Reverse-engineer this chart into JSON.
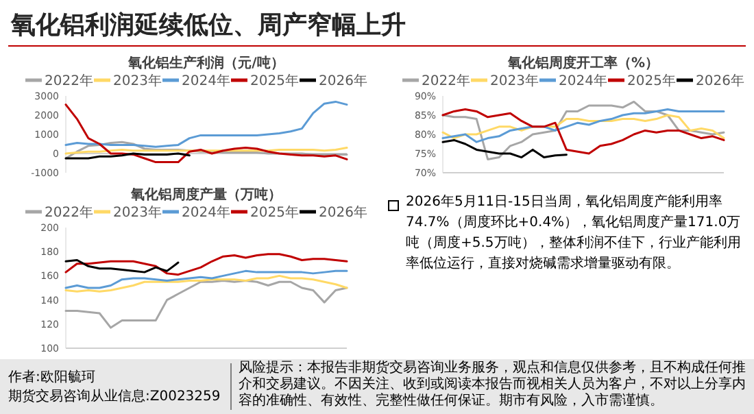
{
  "chart_data": [
    {
      "type": "line",
      "title": "氧化铝生产利润（元/吨）",
      "categories": [
        null,
        null,
        null,
        null,
        null,
        null,
        null,
        null,
        null,
        null,
        null,
        null,
        null,
        null,
        null,
        null,
        null,
        null,
        null,
        null,
        null,
        null,
        null,
        null,
        null,
        null
      ],
      "series": [
        {
          "name": "2022年",
          "color": "#a6a6a6",
          "values": [
            -250,
            100,
            400,
            450,
            550,
            600,
            500,
            250,
            200,
            200,
            200,
            150,
            100,
            100,
            50,
            50,
            50,
            50,
            0,
            0,
            0,
            0,
            -50,
            -50,
            -50,
            -50
          ]
        },
        {
          "name": "2023年",
          "color": "#ffd966",
          "values": [
            0,
            50,
            100,
            100,
            150,
            200,
            150,
            150,
            150,
            150,
            150,
            150,
            150,
            150,
            150,
            150,
            150,
            150,
            150,
            200,
            200,
            200,
            200,
            150,
            200,
            300
          ]
        },
        {
          "name": "2024年",
          "color": "#5b9bd5",
          "values": [
            450,
            550,
            500,
            500,
            450,
            450,
            450,
            400,
            350,
            400,
            450,
            800,
            950,
            950,
            950,
            950,
            950,
            950,
            1000,
            1050,
            1150,
            1300,
            2100,
            2600,
            2700,
            2550
          ]
        },
        {
          "name": "2025年",
          "color": "#c00000",
          "values": [
            2550,
            1800,
            800,
            500,
            0,
            0,
            -50,
            -250,
            -450,
            -450,
            -450,
            100,
            200,
            0,
            150,
            250,
            300,
            250,
            100,
            0,
            -50,
            -100,
            -100,
            -150,
            -100,
            -300
          ]
        },
        {
          "name": "2026年",
          "color": "#000000",
          "values": [
            -250,
            -250,
            -250,
            -150,
            -150,
            -100,
            0,
            -50,
            -50,
            -50,
            0,
            -100,
            null,
            null,
            null,
            null,
            null,
            null,
            null,
            null,
            null,
            null,
            null,
            null,
            null,
            null
          ]
        }
      ],
      "ylim": [
        -1000,
        3000
      ],
      "yticks": [
        -1000,
        0,
        1000,
        2000,
        3000
      ],
      "legend": "top"
    },
    {
      "type": "line",
      "title": "氧化铝周度开工率（%）",
      "categories": [
        null,
        null,
        null,
        null,
        null,
        null,
        null,
        null,
        null,
        null,
        null,
        null,
        null,
        null,
        null,
        null,
        null,
        null,
        null,
        null,
        null,
        null,
        null,
        null,
        null,
        null
      ],
      "series": [
        {
          "name": "2022年",
          "color": "#a6a6a6",
          "values": [
            85,
            84.5,
            84.5,
            84,
            73.5,
            74,
            77,
            78,
            80,
            80.5,
            81,
            86,
            86,
            87.5,
            87.5,
            87.5,
            87,
            88.5,
            86,
            86,
            85,
            81,
            81,
            80.5,
            80,
            80.5
          ]
        },
        {
          "name": "2023年",
          "color": "#ffd966",
          "values": [
            80.5,
            79,
            80,
            80,
            81,
            82,
            82,
            81,
            82,
            82,
            82,
            84,
            84,
            83.5,
            83.5,
            83.5,
            84,
            84,
            83.5,
            84,
            85,
            84.5,
            81,
            81.5,
            81,
            79
          ]
        },
        {
          "name": "2024年",
          "color": "#5b9bd5",
          "values": [
            79,
            79.5,
            80,
            78,
            79,
            79.5,
            81,
            81.5,
            82,
            82,
            81,
            82,
            83,
            82.5,
            83.5,
            84,
            85,
            85.5,
            85.5,
            86,
            86.5,
            86,
            86,
            86,
            86,
            86
          ]
        },
        {
          "name": "2025年",
          "color": "#c00000",
          "values": [
            85,
            86,
            86.5,
            86,
            84.5,
            85,
            85.5,
            83.5,
            82,
            82,
            83,
            76,
            75.5,
            75,
            77,
            77.5,
            78.5,
            80,
            81,
            80.5,
            81,
            81,
            80,
            79,
            79.5,
            78.5
          ]
        },
        {
          "name": "2026年",
          "color": "#000000",
          "values": [
            78,
            78.5,
            77.5,
            76,
            75.5,
            75,
            75,
            74,
            76,
            74,
            74.5,
            74.7,
            null,
            null,
            null,
            null,
            null,
            null,
            null,
            null,
            null,
            null,
            null,
            null,
            null,
            null
          ]
        }
      ],
      "ylim": [
        70,
        90
      ],
      "yticks": [
        {
          "value": 70,
          "label": "70%"
        },
        {
          "value": 75,
          "label": "75%"
        },
        {
          "value": 80,
          "label": "80%"
        },
        {
          "value": 85,
          "label": "85%"
        },
        {
          "value": 90,
          "label": "90%"
        }
      ],
      "legend": "top"
    },
    {
      "type": "line",
      "title": "氧化铝周度产量（万吨）",
      "categories": [
        null,
        null,
        null,
        null,
        null,
        null,
        null,
        null,
        null,
        null,
        null,
        null,
        null,
        null,
        null,
        null,
        null,
        null,
        null,
        null,
        null,
        null,
        null,
        null,
        null,
        null
      ],
      "series": [
        {
          "name": "2022年",
          "color": "#a6a6a6",
          "values": [
            131,
            131,
            130,
            129,
            117,
            123,
            123,
            123,
            123,
            140,
            145,
            150,
            155,
            155,
            156,
            155,
            156,
            155,
            152,
            155,
            155,
            150,
            148,
            138,
            148,
            150
          ]
        },
        {
          "name": "2023年",
          "color": "#ffd966",
          "values": [
            148,
            147,
            148,
            147,
            148,
            150,
            152,
            155,
            155,
            155,
            155,
            156,
            156,
            157,
            157,
            157,
            156,
            158,
            158,
            160,
            158,
            158,
            157,
            155,
            153,
            150
          ]
        },
        {
          "name": "2024年",
          "color": "#5b9bd5",
          "values": [
            150,
            152,
            150,
            150,
            152,
            157,
            158,
            158,
            157,
            156,
            157,
            158,
            159,
            158,
            160,
            162,
            164,
            163,
            163,
            163,
            163,
            163,
            162,
            163,
            164,
            164
          ]
        },
        {
          "name": "2025年",
          "color": "#c00000",
          "values": [
            163,
            170,
            170,
            171,
            172,
            172,
            172,
            170,
            168,
            162,
            161,
            164,
            167,
            172,
            176,
            177,
            175,
            177,
            178,
            178,
            176,
            173,
            174,
            174,
            173,
            172
          ]
        },
        {
          "name": "2026年",
          "color": "#000000",
          "values": [
            172,
            173,
            168,
            166,
            166,
            165,
            164,
            163,
            167,
            164,
            171,
            null,
            null,
            null,
            null,
            null,
            null,
            null,
            null,
            null,
            null,
            null,
            null,
            null,
            null,
            null
          ]
        }
      ],
      "ylim": [
        100,
        200
      ],
      "yticks": [
        100,
        120,
        140,
        160,
        180,
        200
      ],
      "legend": "top"
    },
    {
      "type": "other",
      "title": "氧化铝利润延续低位、周产窄幅上升",
      "annotations": [
        "2026年5月11日-15日当周，氧化铝周度产能利用率74.7%（周度环比+0.4%），氧化铝周度产量171.0万吨（周度+5.5万吨），整体利润不佳下，行业产能利用率低位运行，直接对烧碱需求增量驱动有限。",
        "作者:欧阳毓珂",
        "期货交易咨询从业信息:Z0023259",
        "风险提示：本报告非期货交易咨询业务服务，观点和信息仅供参考，且不构成任何推介和交易建议。不因关注、收到或阅读本报告而视相关人员为客户，不对以上分享内容的准确性、有效性、完整性做任何保证。期市有风险，入市需谨慎。"
      ]
    }
  ]
}
